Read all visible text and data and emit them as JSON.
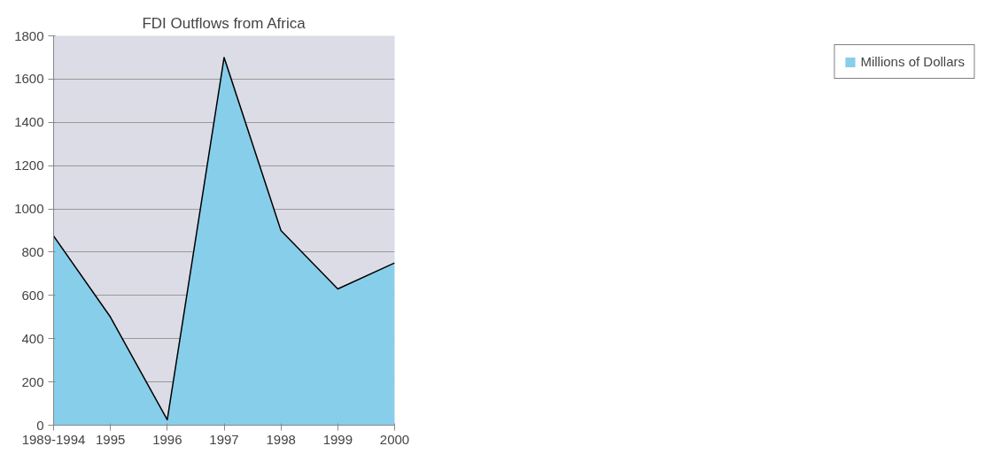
{
  "chart_data": {
    "type": "area",
    "title": "FDI Outflows from Africa",
    "categories": [
      "1989-1994",
      "1995",
      "1996",
      "1997",
      "1998",
      "1999",
      "2000"
    ],
    "series": [
      {
        "name": "Millions of Dollars",
        "color": "#87ceeb",
        "values": [
          875,
          500,
          25,
          1700,
          900,
          630,
          750
        ]
      }
    ],
    "ylim": [
      0,
      1800
    ],
    "yticks": [
      0,
      200,
      400,
      600,
      800,
      1000,
      1200,
      1400,
      1600,
      1800
    ],
    "grid": "y",
    "legend": "right"
  }
}
